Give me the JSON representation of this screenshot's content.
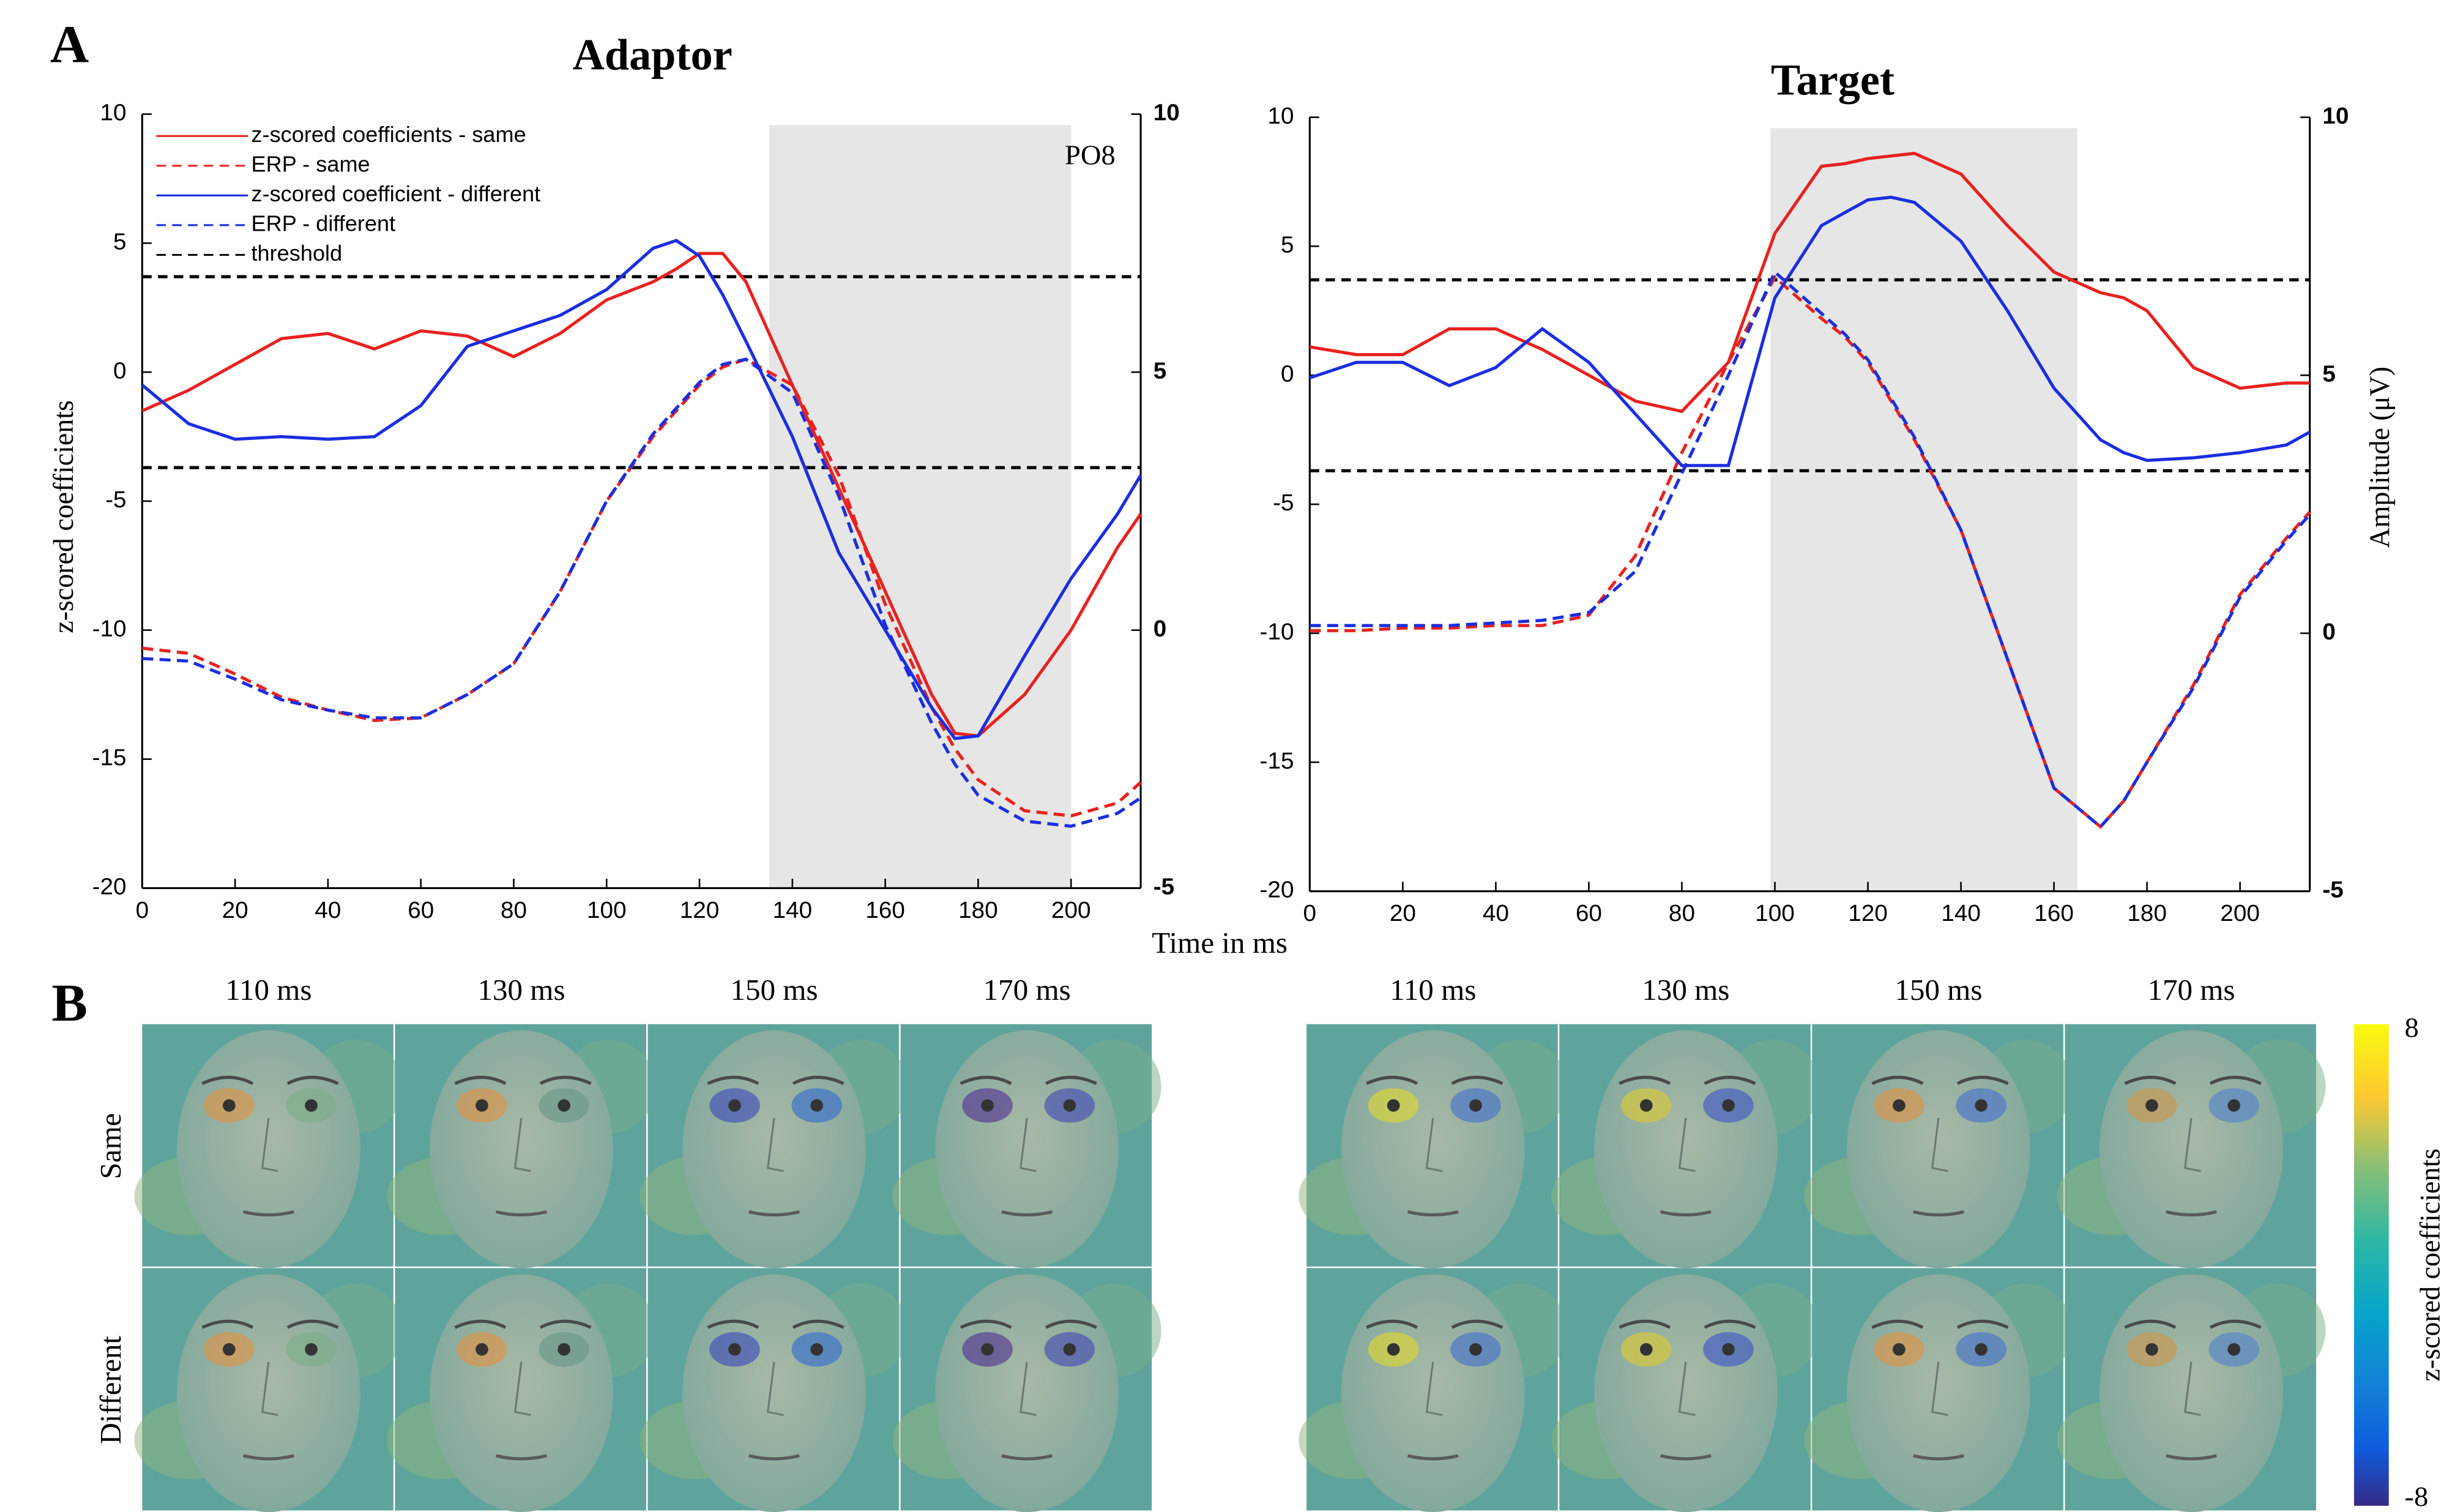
{
  "panels": [
    "A",
    "B"
  ],
  "xlabel": "Time in ms",
  "chart_data": [
    {
      "type": "line",
      "title": "Adaptor",
      "ylabel": "z-scored coefficients",
      "annotation": "PO8",
      "x": [
        0,
        10,
        20,
        30,
        40,
        50,
        60,
        70,
        80,
        90,
        100,
        110,
        115,
        120,
        125,
        130,
        140,
        150,
        160,
        170,
        175,
        180,
        190,
        200,
        210,
        215
      ],
      "xlim": [
        0,
        215
      ],
      "xticks": [
        0,
        20,
        40,
        60,
        80,
        100,
        120,
        140,
        160,
        180,
        200
      ],
      "ylim": [
        -20,
        10
      ],
      "yticks": [
        -20,
        -15,
        -10,
        -5,
        0,
        5,
        10
      ],
      "y2lim": [
        -5,
        10
      ],
      "y2ticks": [
        -5,
        0,
        5,
        10
      ],
      "shaded_range": [
        135,
        200
      ],
      "shade_color": "#e6e6e6",
      "legend": "upper left",
      "series": [
        {
          "name": "z-scored coefficients - same",
          "color": "#e8221f",
          "dash": false,
          "values": [
            -1.5,
            -0.7,
            0.3,
            1.3,
            1.5,
            0.9,
            1.6,
            1.4,
            0.6,
            1.5,
            2.8,
            3.5,
            4.0,
            4.6,
            4.6,
            3.5,
            -0.5,
            -4.5,
            -8.5,
            -12.5,
            -14,
            -14.1,
            -12.5,
            -10,
            -6.8,
            -5.5
          ]
        },
        {
          "name": "ERP - same",
          "color": "#e8221f",
          "dash": true,
          "axis": "y2",
          "values": [
            -0.35,
            -0.45,
            -0.85,
            -1.3,
            -1.55,
            -1.75,
            -1.7,
            -1.25,
            -0.65,
            0.75,
            2.5,
            3.75,
            4.25,
            4.75,
            5.1,
            5.25,
            4.75,
            3,
            0.5,
            -1.5,
            -2.3,
            -2.9,
            -3.5,
            -3.6,
            -3.35,
            -2.95
          ]
        },
        {
          "name": "z-scored coefficient - different",
          "color": "#1a2ee0",
          "dash": false,
          "values": [
            -0.5,
            -2,
            -2.6,
            -2.5,
            -2.6,
            -2.5,
            -1.3,
            1,
            1.6,
            2.2,
            3.2,
            4.8,
            5.1,
            4.5,
            3.0,
            1.2,
            -2.5,
            -7,
            -10,
            -13,
            -14.2,
            -14.1,
            -11,
            -8,
            -5.5,
            -4
          ]
        },
        {
          "name": "ERP - different",
          "color": "#1a2ee0",
          "dash": true,
          "axis": "y2",
          "values": [
            -0.55,
            -0.6,
            -0.95,
            -1.35,
            -1.55,
            -1.7,
            -1.7,
            -1.25,
            -0.65,
            0.75,
            2.5,
            3.8,
            4.3,
            4.8,
            5.15,
            5.25,
            4.6,
            2.6,
            0.1,
            -1.8,
            -2.6,
            -3.2,
            -3.7,
            -3.8,
            -3.55,
            -3.25
          ]
        }
      ],
      "threshold": {
        "name": "threshold",
        "color": "#000000",
        "values": [
          3.7,
          -3.7
        ]
      }
    },
    {
      "type": "line",
      "title": "Target",
      "y2label": "Amplitude (μV)",
      "x": [
        0,
        10,
        20,
        30,
        40,
        50,
        60,
        70,
        80,
        90,
        100,
        110,
        115,
        120,
        125,
        130,
        140,
        150,
        160,
        170,
        175,
        180,
        190,
        200,
        210,
        215
      ],
      "xlim": [
        0,
        215
      ],
      "xticks": [
        0,
        20,
        40,
        60,
        80,
        100,
        120,
        140,
        160,
        180,
        200
      ],
      "ylim": [
        -20,
        10
      ],
      "yticks": [
        -20,
        -15,
        -10,
        -5,
        0,
        5,
        10
      ],
      "y2lim": [
        -5,
        10
      ],
      "y2ticks": [
        -5,
        0,
        5,
        10
      ],
      "shaded_range": [
        99,
        165
      ],
      "shade_color": "#e6e6e6",
      "series": [
        {
          "color": "#e8221f",
          "dash": false,
          "values": [
            1.1,
            0.8,
            0.8,
            1.8,
            1.8,
            1.0,
            0,
            -1.0,
            -1.4,
            0.5,
            5.5,
            8.1,
            8.2,
            8.4,
            8.5,
            8.6,
            7.8,
            5.8,
            4.0,
            3.2,
            3.0,
            2.5,
            0.3,
            -0.5,
            -0.3,
            -0.3
          ]
        },
        {
          "color": "#e8221f",
          "dash": true,
          "axis": "y2",
          "values": [
            0.05,
            0.05,
            0.1,
            0.1,
            0.15,
            0.15,
            0.35,
            1.5,
            3.5,
            5.25,
            6.9,
            6.1,
            5.75,
            5.25,
            4.5,
            3.75,
            2,
            -0.5,
            -3,
            -3.75,
            -3.25,
            -2.5,
            -1,
            0.75,
            1.85,
            2.35
          ]
        },
        {
          "color": "#1a2ee0",
          "dash": false,
          "values": [
            -0.1,
            0.5,
            0.5,
            -0.4,
            0.3,
            1.8,
            0.5,
            -1.5,
            -3.5,
            -3.5,
            3,
            5.8,
            6.3,
            6.8,
            6.9,
            6.7,
            5.2,
            2.5,
            -0.5,
            -2.5,
            -3.0,
            -3.3,
            -3.2,
            -3.0,
            -2.7,
            -2.2
          ]
        },
        {
          "color": "#1a2ee0",
          "dash": true,
          "axis": "y2",
          "values": [
            0.15,
            0.15,
            0.15,
            0.15,
            0.2,
            0.25,
            0.4,
            1.2,
            3.1,
            5.0,
            7.0,
            6.2,
            5.8,
            5.3,
            4.55,
            3.8,
            2.0,
            -0.5,
            -3.0,
            -3.75,
            -3.25,
            -2.5,
            -1.05,
            0.7,
            1.8,
            2.3
          ]
        }
      ],
      "threshold": {
        "color": "#000000",
        "values": [
          3.7,
          -3.7
        ]
      }
    }
  ],
  "panel_b": {
    "adaptor_times": [
      "110 ms",
      "130 ms",
      "150 ms",
      "170 ms"
    ],
    "target_times": [
      "110 ms",
      "130 ms",
      "150 ms",
      "170 ms"
    ],
    "rows": [
      "Same",
      "Different"
    ],
    "colorbar": {
      "label": "z-scored coefficients",
      "ticks": [
        8,
        -8
      ]
    }
  }
}
